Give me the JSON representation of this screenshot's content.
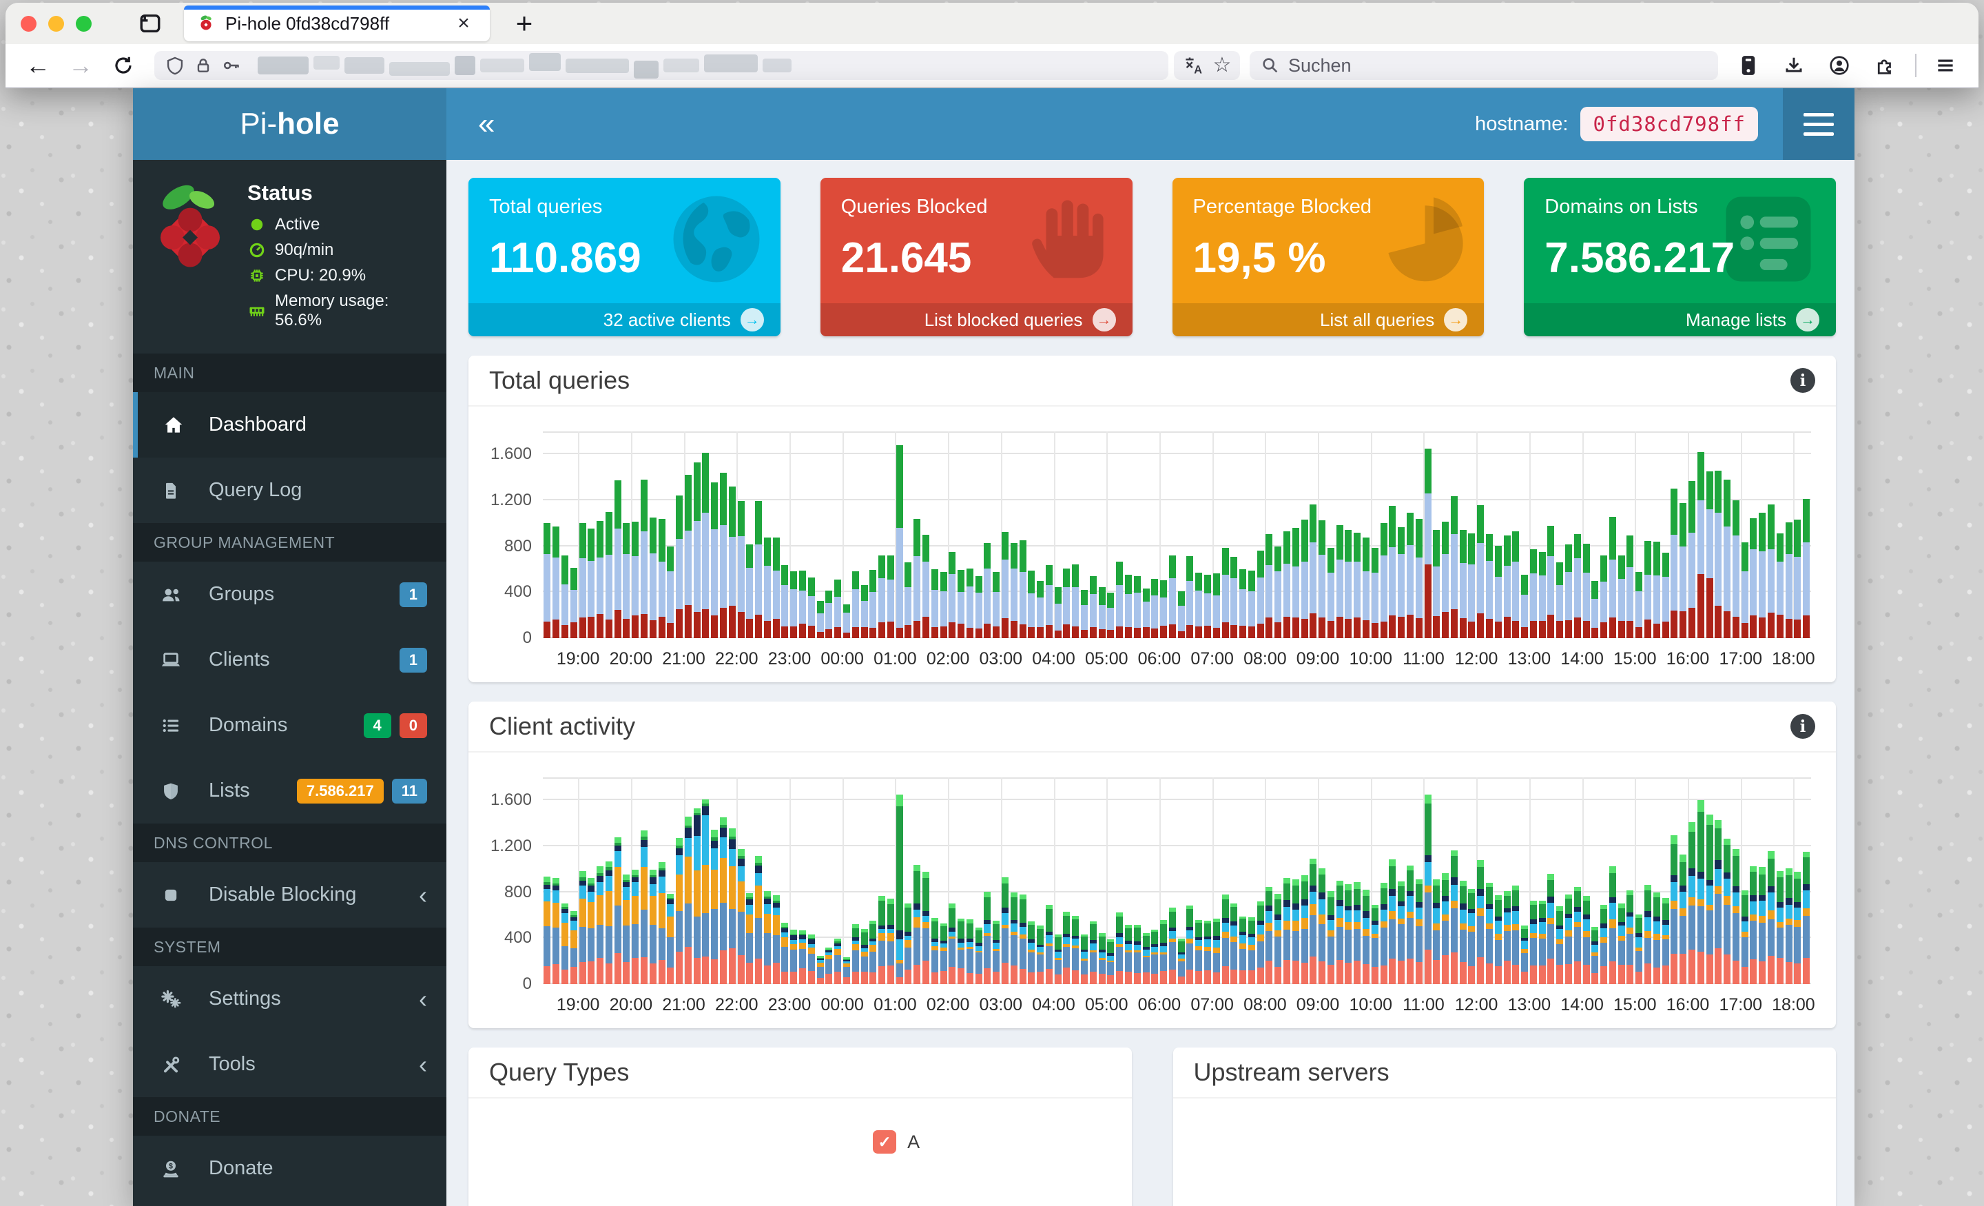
{
  "browser": {
    "tab_title": "Pi-hole 0fd38cd798ff",
    "close_glyph": "×",
    "new_tab_glyph": "+",
    "back_glyph": "←",
    "forward_glyph": "→",
    "search_placeholder": "Suchen",
    "star_glyph": "☆"
  },
  "header": {
    "brand_light": "Pi-",
    "brand_bold": "hole",
    "collapse_glyph": "«",
    "hostname_label": "hostname:",
    "hostname_value": "0fd38cd798ff"
  },
  "status": {
    "title": "Status",
    "icon_color": "#71d218",
    "rows": [
      {
        "icon": "dot",
        "text": "Active"
      },
      {
        "icon": "gauge",
        "text": "90q/min"
      },
      {
        "icon": "chip",
        "text": "CPU: 20.9%"
      },
      {
        "icon": "memory",
        "text": "Memory usage: 56.6%"
      }
    ]
  },
  "sidebar": {
    "sections": [
      {
        "label": "MAIN",
        "items": [
          {
            "icon": "home",
            "label": "Dashboard",
            "active": true
          },
          {
            "icon": "file",
            "label": "Query Log"
          }
        ]
      },
      {
        "label": "GROUP MANAGEMENT",
        "items": [
          {
            "icon": "users",
            "label": "Groups",
            "badges": [
              {
                "text": "1",
                "color": "#3c8dbc"
              }
            ]
          },
          {
            "icon": "laptop",
            "label": "Clients",
            "badges": [
              {
                "text": "1",
                "color": "#3c8dbc"
              }
            ]
          },
          {
            "icon": "list",
            "label": "Domains",
            "badges": [
              {
                "text": "4",
                "color": "#00a65a"
              },
              {
                "text": "0",
                "color": "#dd4b39"
              }
            ]
          },
          {
            "icon": "shield",
            "label": "Lists",
            "badges": [
              {
                "text": "7.586.217",
                "color": "#f39c12"
              },
              {
                "text": "11",
                "color": "#3c8dbc"
              }
            ]
          }
        ]
      },
      {
        "label": "DNS CONTROL",
        "items": [
          {
            "icon": "stop",
            "label": "Disable Blocking",
            "chevron": true
          }
        ]
      },
      {
        "label": "SYSTEM",
        "items": [
          {
            "icon": "gears",
            "label": "Settings",
            "chevron": true
          },
          {
            "icon": "tools",
            "label": "Tools",
            "chevron": true
          }
        ]
      },
      {
        "label": "DONATE",
        "items": [
          {
            "icon": "donate",
            "label": "Donate"
          }
        ]
      }
    ]
  },
  "cards": [
    {
      "title": "Total queries",
      "value": "110.869",
      "footer": "32 active clients",
      "color": "#00c0ef",
      "icon": "globe",
      "arrow": "→"
    },
    {
      "title": "Queries Blocked",
      "value": "21.645",
      "footer": "List blocked queries",
      "color": "#dd4b39",
      "icon": "hand",
      "arrow": "→"
    },
    {
      "title": "Percentage Blocked",
      "value": "19,5 %",
      "footer": "List all queries",
      "color": "#f39c12",
      "icon": "pie",
      "arrow": "→"
    },
    {
      "title": "Domains on Lists",
      "value": "7.586.217",
      "footer": "Manage lists",
      "color": "#00a65a",
      "icon": "listcard",
      "arrow": "→"
    }
  ],
  "info_glyph": "i",
  "chart_data": [
    {
      "type": "bar",
      "stacked": true,
      "title": "Total queries",
      "interval_minutes": 10,
      "bars": 144,
      "label_offset": 4,
      "y_max": 1800,
      "y_ticks": [
        "0",
        "400",
        "800",
        "1.200",
        "1.600"
      ],
      "x_labels": [
        "19:00",
        "20:00",
        "21:00",
        "22:00",
        "23:00",
        "00:00",
        "01:00",
        "02:00",
        "03:00",
        "04:00",
        "05:00",
        "06:00",
        "07:00",
        "08:00",
        "09:00",
        "10:00",
        "11:00",
        "12:00",
        "13:00",
        "14:00",
        "15:00",
        "16:00",
        "17:00",
        "18:00"
      ],
      "series": [
        {
          "color": "#ad2318",
          "values": [
            150,
            175,
            205,
            200,
            95,
            70,
            160,
            110,
            150,
            85,
            100,
            95,
            115,
            160,
            170,
            160,
            190,
            155,
            145,
            145,
            160,
            205,
            180,
            160
          ]
        },
        {
          "color": "#a8c3ea",
          "values": [
            425,
            510,
            600,
            570,
            270,
            200,
            470,
            310,
            425,
            250,
            290,
            270,
            340,
            470,
            495,
            470,
            545,
            440,
            415,
            415,
            470,
            600,
            520,
            470
          ]
        },
        {
          "color": "#1ea63c",
          "values": [
            245,
            295,
            345,
            330,
            155,
            115,
            270,
            180,
            245,
            145,
            170,
            155,
            195,
            270,
            285,
            270,
            315,
            255,
            240,
            240,
            270,
            345,
            300,
            270
          ]
        }
      ],
      "overrides": {
        "17": [
          230,
          790,
          510
        ],
        "18": [
          255,
          840,
          520
        ],
        "40": [
          90,
          870,
          720
        ],
        "100": [
          640,
          620,
          390
        ],
        "131": [
          560,
          640,
          420
        ],
        "132": [
          520,
          600,
          330
        ]
      }
    },
    {
      "type": "bar",
      "stacked": true,
      "title": "Client activity",
      "interval_minutes": 10,
      "bars": 144,
      "label_offset": 4,
      "y_max": 1800,
      "y_ticks": [
        "0",
        "400",
        "800",
        "1.200",
        "1.600"
      ],
      "x_labels": [
        "19:00",
        "20:00",
        "21:00",
        "22:00",
        "23:00",
        "00:00",
        "01:00",
        "02:00",
        "03:00",
        "04:00",
        "05:00",
        "06:00",
        "07:00",
        "08:00",
        "09:00",
        "10:00",
        "11:00",
        "12:00",
        "13:00",
        "14:00",
        "15:00",
        "16:00",
        "17:00",
        "18:00"
      ],
      "series": [
        {
          "color": "#f2705f",
          "values": [
            160,
            200,
            230,
            220,
            100,
            80,
            180,
            120,
            160,
            100,
            110,
            100,
            130,
            180,
            190,
            180,
            210,
            170,
            160,
            160,
            180,
            230,
            200,
            180
          ]
        },
        {
          "color": "#5d8fc0",
          "values": [
            250,
            290,
            350,
            330,
            160,
            110,
            270,
            180,
            250,
            140,
            170,
            160,
            200,
            270,
            290,
            270,
            320,
            260,
            240,
            240,
            270,
            350,
            300,
            270
          ]
        },
        {
          "color": "#f0a11e",
          "values": [
            200,
            240,
            290,
            280,
            50,
            40,
            90,
            20,
            30,
            20,
            20,
            20,
            50,
            70,
            80,
            50,
            60,
            50,
            50,
            50,
            50,
            60,
            60,
            50
          ]
        },
        {
          "color": "#2db9e8",
          "values": [
            100,
            120,
            140,
            130,
            30,
            20,
            50,
            40,
            80,
            50,
            60,
            50,
            70,
            110,
            110,
            110,
            130,
            100,
            100,
            100,
            110,
            140,
            120,
            110
          ]
        },
        {
          "color": "#152b55",
          "values": [
            40,
            50,
            60,
            60,
            30,
            20,
            40,
            30,
            40,
            20,
            30,
            25,
            30,
            45,
            50,
            45,
            50,
            40,
            40,
            40,
            45,
            60,
            50,
            45
          ]
        },
        {
          "color": "#219e44",
          "values": [
            20,
            20,
            20,
            20,
            10,
            10,
            270,
            150,
            200,
            120,
            140,
            130,
            130,
            140,
            150,
            140,
            160,
            130,
            120,
            120,
            160,
            220,
            190,
            170
          ]
        },
        {
          "color": "#54e16c",
          "values": [
            40,
            50,
            60,
            60,
            30,
            20,
            50,
            30,
            40,
            25,
            30,
            25,
            30,
            45,
            50,
            45,
            50,
            40,
            40,
            40,
            45,
            60,
            50,
            45
          ]
        }
      ],
      "overrides": {
        "17": [
          230,
          360,
          400,
          300,
          180,
          20,
          40
        ],
        "18": [
          240,
          380,
          420,
          430,
          80,
          20,
          40
        ],
        "40": [
          60,
          120,
          30,
          180,
          80,
          1080,
          100
        ],
        "100": [
          300,
          500,
          60,
          200,
          60,
          450,
          80
        ],
        "131": [
          280,
          400,
          60,
          180,
          60,
          520,
          100
        ],
        "132": [
          260,
          380,
          50,
          170,
          50,
          480,
          90
        ]
      }
    }
  ],
  "panels": {
    "query_types": {
      "title": "Query Types",
      "legend": [
        {
          "label": "A",
          "color": "#f2705f",
          "checked": true,
          "check_glyph": "✓"
        }
      ]
    },
    "upstream_servers": {
      "title": "Upstream servers"
    }
  }
}
